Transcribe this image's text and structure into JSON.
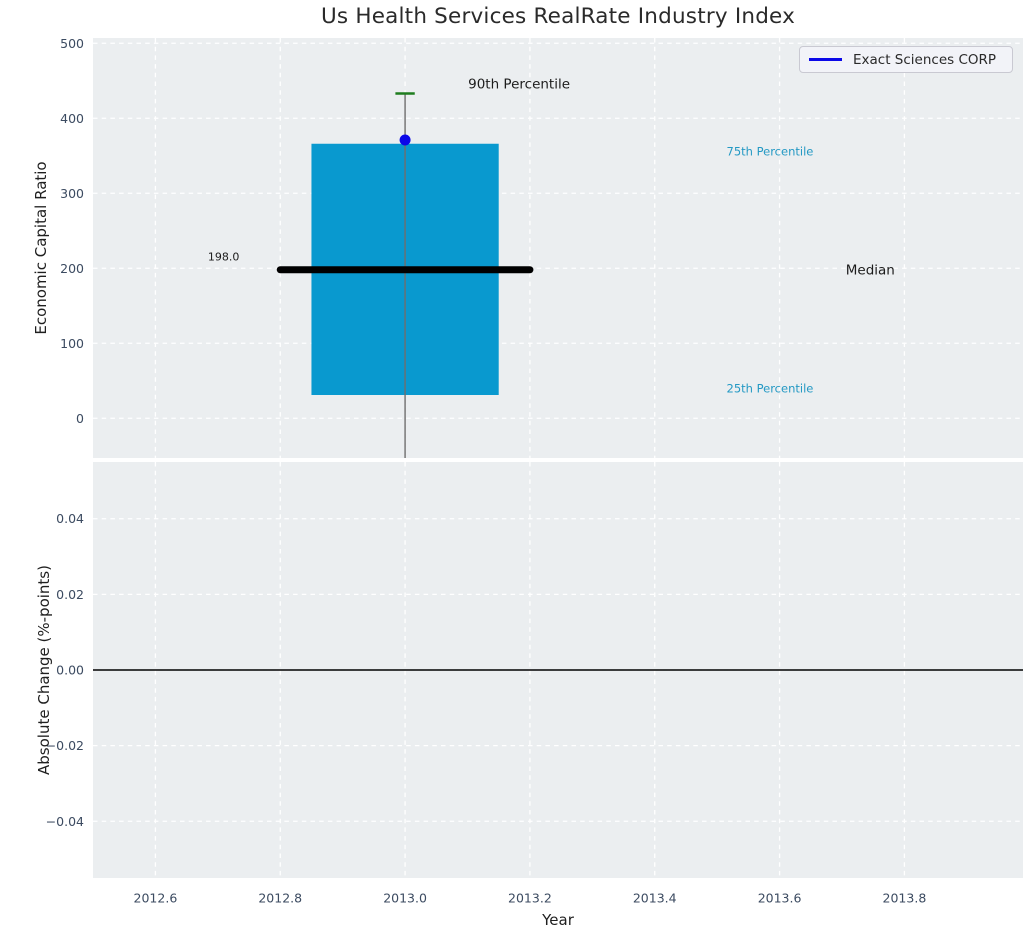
{
  "chart_data": [
    {
      "type": "box",
      "panel": "top",
      "title": "Us Health Services RealRate Industry Index",
      "ylabel": "Economic Capital Ratio",
      "xlim": [
        2012.5,
        2013.99
      ],
      "ylim": [
        -53,
        507
      ],
      "grid": "white dashed, on",
      "x_ticks": [
        {
          "v": 2012.6,
          "label": "2012.6"
        },
        {
          "v": 2012.8,
          "label": "2012.8"
        },
        {
          "v": 2013.0,
          "label": "2013.0"
        },
        {
          "v": 2013.2,
          "label": "2013.2"
        },
        {
          "v": 2013.4,
          "label": "2013.4"
        },
        {
          "v": 2013.6,
          "label": "2013.6"
        },
        {
          "v": 2013.8,
          "label": "2013.8"
        }
      ],
      "y_ticks": [
        {
          "v": 0,
          "label": "0"
        },
        {
          "v": 100,
          "label": "100"
        },
        {
          "v": 200,
          "label": "200"
        },
        {
          "v": 300,
          "label": "300"
        },
        {
          "v": 400,
          "label": "400"
        },
        {
          "v": 500,
          "label": "500"
        }
      ],
      "box": {
        "x": 2013.0,
        "box_half_width": 0.15,
        "median_line_half_width": 0.2,
        "q1_25th_percentile": 31,
        "median": 198.0,
        "q3_75th_percentile": 366,
        "p90_cap": 433,
        "cap_half_width": 0.0155,
        "whisker_extends_below_axis": true
      },
      "point": {
        "name": "Exact Sciences CORP",
        "x": 2013.0,
        "y": 371
      },
      "legend": {
        "label": "Exact Sciences CORP",
        "position": "upper right"
      },
      "annotations": [
        {
          "text": "90th Percentile",
          "x": 2013.101,
          "y": 445,
          "color": "#1c1c1c",
          "size": 13.5
        },
        {
          "text": "75th Percentile",
          "x": 2013.515,
          "y": 356,
          "color": "#2499c4",
          "size": 11.5
        },
        {
          "text": "Median",
          "x": 2013.706,
          "y": 197,
          "color": "#1c1c1c",
          "size": 13.5
        },
        {
          "text": "25th Percentile",
          "x": 2013.515,
          "y": 40,
          "color": "#2499c4",
          "size": 11.5
        },
        {
          "text": "198.0",
          "x": 2012.684,
          "y": 215,
          "color": "#1c1c1c",
          "size": 11
        }
      ],
      "colors": {
        "box_fill": "#0999cf",
        "median_line": "#000000",
        "whisker": "#6e6e6e",
        "p90_cap": "#1e7d1e",
        "company_point": "#0b08e8",
        "axes_background": "#ebeef0",
        "gridline": "#ffffff",
        "tick_text": "#3c4b61"
      }
    },
    {
      "type": "line",
      "panel": "bottom",
      "ylabel": "Absolute Change (%-points)",
      "xlabel": "Year",
      "xlim": [
        2012.5,
        2013.99
      ],
      "ylim": [
        -0.055,
        0.055
      ],
      "grid": "white dashed, on",
      "x_ticks": [
        {
          "v": 2012.6,
          "label": "2012.6"
        },
        {
          "v": 2012.8,
          "label": "2012.8"
        },
        {
          "v": 2013.0,
          "label": "2013.0"
        },
        {
          "v": 2013.2,
          "label": "2013.2"
        },
        {
          "v": 2013.4,
          "label": "2013.4"
        },
        {
          "v": 2013.6,
          "label": "2013.6"
        },
        {
          "v": 2013.8,
          "label": "2013.8"
        }
      ],
      "y_ticks": [
        {
          "v": 0.04,
          "label": "0.04"
        },
        {
          "v": 0.02,
          "label": "0.02"
        },
        {
          "v": 0.0,
          "label": "0.00"
        },
        {
          "v": -0.02,
          "label": "−0.02"
        },
        {
          "v": -0.04,
          "label": "−0.04"
        }
      ],
      "zero_line": {
        "y": 0.0,
        "color": "#000000"
      },
      "series": []
    }
  ]
}
